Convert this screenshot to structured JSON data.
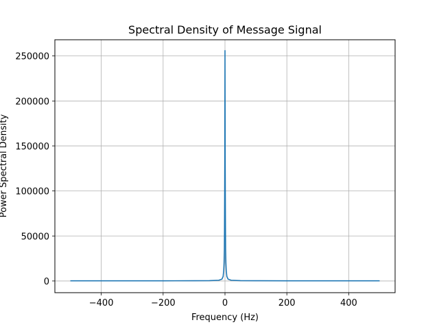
{
  "chart_data": {
    "type": "line",
    "title": "Spectral Density of Message Signal",
    "xlabel": "Frequency (Hz)",
    "ylabel": "Power Spectral Density",
    "xlim": [
      -550,
      550
    ],
    "ylim": [
      -13000,
      268000
    ],
    "grid": true,
    "x_ticks": [
      -400,
      -200,
      0,
      200,
      400
    ],
    "x_tick_labels": [
      "−400",
      "−200",
      "0",
      "200",
      "400"
    ],
    "y_ticks": [
      0,
      50000,
      100000,
      150000,
      200000,
      250000
    ],
    "y_tick_labels": [
      "0",
      "50000",
      "100000",
      "150000",
      "200000",
      "250000"
    ],
    "series": [
      {
        "color": "#1f77b4",
        "x": [
          -500,
          -400,
          -300,
          -200,
          -100,
          -50,
          -20,
          -10,
          -6,
          -4,
          -3,
          -2,
          -1.5,
          -1,
          -0.6,
          -0.3,
          0,
          0.3,
          0.6,
          1,
          1.5,
          2,
          3,
          4,
          6,
          10,
          20,
          50,
          100,
          200,
          300,
          400,
          500
        ],
        "y": [
          200,
          200,
          200,
          200,
          300,
          400,
          800,
          2000,
          5000,
          12000,
          20000,
          35000,
          60000,
          100000,
          140000,
          200000,
          256000,
          200000,
          140000,
          100000,
          60000,
          35000,
          20000,
          12000,
          5000,
          2000,
          800,
          400,
          300,
          200,
          200,
          200,
          200
        ]
      }
    ]
  }
}
